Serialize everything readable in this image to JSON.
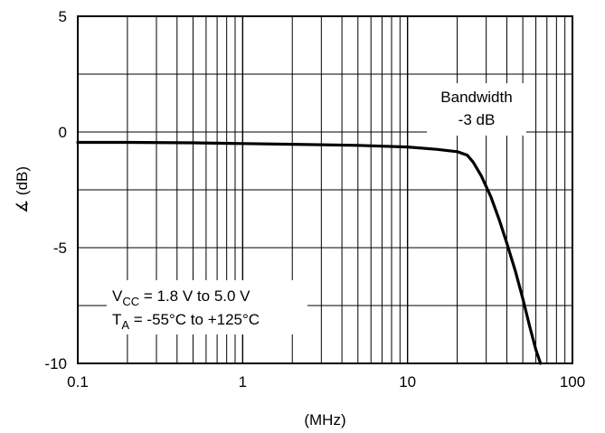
{
  "chart_data": {
    "type": "line",
    "x_scale": "log",
    "xlim": [
      0.1,
      100
    ],
    "ylim": [
      -10,
      5
    ],
    "xlabel": "(MHz)",
    "ylabel": "∡ (dB)",
    "x_ticks": [
      0.1,
      1,
      10,
      100
    ],
    "x_tick_labels": [
      "0.1",
      "1",
      "10",
      "100"
    ],
    "y_ticks": [
      5,
      0,
      -5,
      -10
    ],
    "y_tick_labels": [
      "5",
      "0",
      "-5",
      "-10"
    ],
    "grid": true,
    "series": [
      {
        "color": "#000000",
        "x": [
          0.1,
          0.2,
          0.5,
          1,
          2,
          5,
          10,
          15,
          20,
          23,
          25,
          28,
          32,
          36,
          40,
          45,
          50,
          55,
          60,
          64
        ],
        "y": [
          -0.45,
          -0.45,
          -0.47,
          -0.5,
          -0.53,
          -0.58,
          -0.65,
          -0.75,
          -0.85,
          -1.0,
          -1.3,
          -1.9,
          -2.8,
          -3.8,
          -4.8,
          -6.0,
          -7.2,
          -8.4,
          -9.4,
          -10.0
        ]
      }
    ],
    "annotations": [
      {
        "id": "bandwidth",
        "lines": [
          "Bandwidth",
          "-3  dB"
        ]
      },
      {
        "id": "conditions",
        "lines": [
          {
            "main": "V",
            "sub": "CC",
            "rest": " = 1.8 V to 5.0 V"
          },
          {
            "main": "T",
            "sub": "A",
            "rest": " = -55°C to +125°C"
          }
        ]
      }
    ]
  }
}
